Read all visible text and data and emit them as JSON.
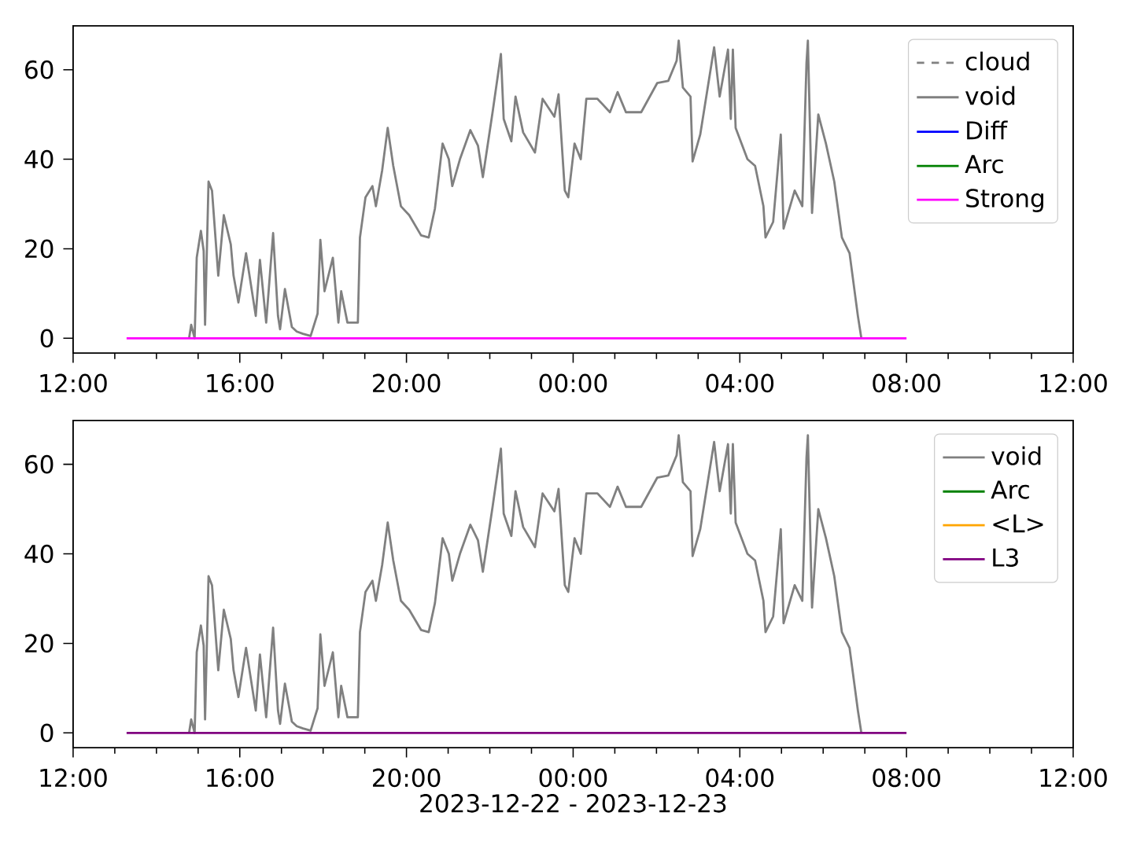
{
  "chart_data": [
    {
      "type": "line",
      "xlim": [
        "2023-12-22T12:00",
        "2023-12-23T12:00"
      ],
      "ylim": [
        -3.3,
        69.8
      ],
      "xticks": [
        {
          "value": "2023-12-22T12:00",
          "label": "12:00"
        },
        {
          "value": "2023-12-22T13:00",
          "label": null
        },
        {
          "value": "2023-12-22T14:00",
          "label": null
        },
        {
          "value": "2023-12-22T15:00",
          "label": null
        },
        {
          "value": "2023-12-22T16:00",
          "label": "16:00"
        },
        {
          "value": "2023-12-22T17:00",
          "label": null
        },
        {
          "value": "2023-12-22T18:00",
          "label": null
        },
        {
          "value": "2023-12-22T19:00",
          "label": null
        },
        {
          "value": "2023-12-22T20:00",
          "label": "20:00"
        },
        {
          "value": "2023-12-22T21:00",
          "label": null
        },
        {
          "value": "2023-12-22T22:00",
          "label": null
        },
        {
          "value": "2023-12-22T23:00",
          "label": null
        },
        {
          "value": "2023-12-23T00:00",
          "label": "00:00"
        },
        {
          "value": "2023-12-23T01:00",
          "label": null
        },
        {
          "value": "2023-12-23T02:00",
          "label": null
        },
        {
          "value": "2023-12-23T03:00",
          "label": null
        },
        {
          "value": "2023-12-23T04:00",
          "label": "04:00"
        },
        {
          "value": "2023-12-23T05:00",
          "label": null
        },
        {
          "value": "2023-12-23T06:00",
          "label": null
        },
        {
          "value": "2023-12-23T07:00",
          "label": null
        },
        {
          "value": "2023-12-23T08:00",
          "label": "08:00"
        },
        {
          "value": "2023-12-23T09:00",
          "label": null
        },
        {
          "value": "2023-12-23T10:00",
          "label": null
        },
        {
          "value": "2023-12-23T11:00",
          "label": null
        },
        {
          "value": "2023-12-23T12:00",
          "label": "12:00"
        }
      ],
      "yticks": [
        0,
        20,
        40,
        60
      ],
      "legend": "top right",
      "series": [
        {
          "name": "cloud",
          "color": "#808080",
          "line_style": "dashed",
          "values": [
            null
          ]
        },
        {
          "name": "void",
          "color": "#808080",
          "x": [
            "2023-12-22T14:47",
            "2023-12-22T14:50",
            "2023-12-22T14:55",
            "2023-12-22T14:58",
            "2023-12-22T15:04",
            "2023-12-22T15:08",
            "2023-12-22T15:10",
            "2023-12-22T15:15",
            "2023-12-22T15:20",
            "2023-12-22T15:29",
            "2023-12-22T15:37",
            "2023-12-22T15:47",
            "2023-12-22T15:51",
            "2023-12-22T15:58",
            "2023-12-22T16:09",
            "2023-12-22T16:19",
            "2023-12-22T16:23",
            "2023-12-22T16:29",
            "2023-12-22T16:38",
            "2023-12-22T16:48",
            "2023-12-22T16:55",
            "2023-12-22T16:58",
            "2023-12-22T17:05",
            "2023-12-22T17:15",
            "2023-12-22T17:22",
            "2023-12-22T17:31",
            "2023-12-22T17:42",
            "2023-12-22T17:52",
            "2023-12-22T17:56",
            "2023-12-22T18:02",
            "2023-12-22T18:14",
            "2023-12-22T18:22",
            "2023-12-22T18:26",
            "2023-12-22T18:35",
            "2023-12-22T18:50",
            "2023-12-22T18:53",
            "2023-12-22T19:01",
            "2023-12-22T19:11",
            "2023-12-22T19:16",
            "2023-12-22T19:25",
            "2023-12-22T19:33",
            "2023-12-22T19:41",
            "2023-12-22T19:52",
            "2023-12-22T20:04",
            "2023-12-22T20:21",
            "2023-12-22T20:32",
            "2023-12-22T20:41",
            "2023-12-22T20:52",
            "2023-12-22T21:01",
            "2023-12-22T21:06",
            "2023-12-22T21:17",
            "2023-12-22T21:32",
            "2023-12-22T21:43",
            "2023-12-22T21:50",
            "2023-12-22T22:04",
            "2023-12-22T22:16",
            "2023-12-22T22:20",
            "2023-12-22T22:31",
            "2023-12-22T22:37",
            "2023-12-22T22:48",
            "2023-12-22T23:05",
            "2023-12-22T23:16",
            "2023-12-22T23:33",
            "2023-12-22T23:39",
            "2023-12-22T23:48",
            "2023-12-22T23:53",
            "2023-12-23T00:02",
            "2023-12-23T00:11",
            "2023-12-23T00:19",
            "2023-12-23T00:35",
            "2023-12-23T00:53",
            "2023-12-23T01:04",
            "2023-12-23T01:16",
            "2023-12-23T01:38",
            "2023-12-23T02:01",
            "2023-12-23T02:17",
            "2023-12-23T02:29",
            "2023-12-23T02:32",
            "2023-12-23T02:38",
            "2023-12-23T02:49",
            "2023-12-23T02:52",
            "2023-12-23T03:03",
            "2023-12-23T03:23",
            "2023-12-23T03:31",
            "2023-12-23T03:43",
            "2023-12-23T03:47",
            "2023-12-23T03:50",
            "2023-12-23T03:54",
            "2023-12-23T04:11",
            "2023-12-23T04:22",
            "2023-12-23T04:34",
            "2023-12-23T04:37",
            "2023-12-23T04:48",
            "2023-12-23T04:59",
            "2023-12-23T05:03",
            "2023-12-23T05:19",
            "2023-12-23T05:30",
            "2023-12-23T05:36",
            "2023-12-23T05:38",
            "2023-12-23T05:44",
            "2023-12-23T05:53",
            "2023-12-23T06:04",
            "2023-12-23T06:16",
            "2023-12-23T06:27",
            "2023-12-23T06:38",
            "2023-12-23T06:50",
            "2023-12-23T06:55"
          ],
          "values": [
            0,
            3,
            0,
            18,
            24,
            19.5,
            3,
            35,
            33,
            14,
            27.5,
            21,
            14,
            8,
            19,
            9,
            5,
            17.5,
            3.5,
            23.5,
            5,
            2,
            11,
            2.5,
            1.5,
            1,
            0.5,
            5.5,
            22,
            10.5,
            18,
            3.5,
            10.5,
            3.5,
            3.5,
            22.5,
            31.5,
            34,
            29.5,
            37.5,
            47,
            38.5,
            29.5,
            27.5,
            23,
            22.5,
            29,
            43.5,
            40,
            34,
            40,
            46.5,
            43,
            36,
            50.5,
            63.5,
            49,
            44,
            54,
            46,
            41.5,
            53.5,
            49.5,
            54.5,
            33,
            31.5,
            43.5,
            40,
            53.5,
            53.5,
            50.5,
            55,
            50.5,
            50.5,
            57,
            57.5,
            62,
            66.5,
            56,
            54,
            39.5,
            45.5,
            65,
            54,
            64.5,
            49,
            64.5,
            47,
            40,
            38.5,
            29.5,
            22.5,
            26,
            45.5,
            24.5,
            33,
            29.5,
            61.5,
            66.5,
            28,
            50,
            43.5,
            35,
            22.5,
            19,
            5,
            0
          ]
        },
        {
          "name": "Diff",
          "color": "#0000ff",
          "values": [
            null
          ]
        },
        {
          "name": "Arc",
          "color": "#008000",
          "values": [
            null
          ]
        },
        {
          "name": "Strong",
          "color": "#ff00ff",
          "x": [
            "2023-12-22T13:17",
            "2023-12-23T08:00"
          ],
          "values": [
            0,
            0
          ]
        }
      ]
    },
    {
      "type": "line",
      "xlim": [
        "2023-12-22T12:00",
        "2023-12-23T12:00"
      ],
      "ylim": [
        -3.3,
        69.8
      ],
      "xlabel": "2023-12-22 - 2023-12-23",
      "xticks": [
        {
          "value": "2023-12-22T12:00",
          "label": "12:00"
        },
        {
          "value": "2023-12-22T13:00",
          "label": null
        },
        {
          "value": "2023-12-22T14:00",
          "label": null
        },
        {
          "value": "2023-12-22T15:00",
          "label": null
        },
        {
          "value": "2023-12-22T16:00",
          "label": "16:00"
        },
        {
          "value": "2023-12-22T17:00",
          "label": null
        },
        {
          "value": "2023-12-22T18:00",
          "label": null
        },
        {
          "value": "2023-12-22T19:00",
          "label": null
        },
        {
          "value": "2023-12-22T20:00",
          "label": "20:00"
        },
        {
          "value": "2023-12-22T21:00",
          "label": null
        },
        {
          "value": "2023-12-22T22:00",
          "label": null
        },
        {
          "value": "2023-12-22T23:00",
          "label": null
        },
        {
          "value": "2023-12-23T00:00",
          "label": "00:00"
        },
        {
          "value": "2023-12-23T01:00",
          "label": null
        },
        {
          "value": "2023-12-23T02:00",
          "label": null
        },
        {
          "value": "2023-12-23T03:00",
          "label": null
        },
        {
          "value": "2023-12-23T04:00",
          "label": "04:00"
        },
        {
          "value": "2023-12-23T05:00",
          "label": null
        },
        {
          "value": "2023-12-23T06:00",
          "label": null
        },
        {
          "value": "2023-12-23T07:00",
          "label": null
        },
        {
          "value": "2023-12-23T08:00",
          "label": "08:00"
        },
        {
          "value": "2023-12-23T09:00",
          "label": null
        },
        {
          "value": "2023-12-23T10:00",
          "label": null
        },
        {
          "value": "2023-12-23T11:00",
          "label": null
        },
        {
          "value": "2023-12-23T12:00",
          "label": "12:00"
        }
      ],
      "yticks": [
        0,
        20,
        40,
        60
      ],
      "legend": "top right",
      "series": [
        {
          "name": "void",
          "color": "#808080",
          "x": [
            "2023-12-22T14:47",
            "2023-12-22T14:50",
            "2023-12-22T14:55",
            "2023-12-22T14:58",
            "2023-12-22T15:04",
            "2023-12-22T15:08",
            "2023-12-22T15:10",
            "2023-12-22T15:15",
            "2023-12-22T15:20",
            "2023-12-22T15:29",
            "2023-12-22T15:37",
            "2023-12-22T15:47",
            "2023-12-22T15:51",
            "2023-12-22T15:58",
            "2023-12-22T16:09",
            "2023-12-22T16:19",
            "2023-12-22T16:23",
            "2023-12-22T16:29",
            "2023-12-22T16:38",
            "2023-12-22T16:48",
            "2023-12-22T16:55",
            "2023-12-22T16:58",
            "2023-12-22T17:05",
            "2023-12-22T17:15",
            "2023-12-22T17:22",
            "2023-12-22T17:31",
            "2023-12-22T17:42",
            "2023-12-22T17:52",
            "2023-12-22T17:56",
            "2023-12-22T18:02",
            "2023-12-22T18:14",
            "2023-12-22T18:22",
            "2023-12-22T18:26",
            "2023-12-22T18:35",
            "2023-12-22T18:50",
            "2023-12-22T18:53",
            "2023-12-22T19:01",
            "2023-12-22T19:11",
            "2023-12-22T19:16",
            "2023-12-22T19:25",
            "2023-12-22T19:33",
            "2023-12-22T19:41",
            "2023-12-22T19:52",
            "2023-12-22T20:04",
            "2023-12-22T20:21",
            "2023-12-22T20:32",
            "2023-12-22T20:41",
            "2023-12-22T20:52",
            "2023-12-22T21:01",
            "2023-12-22T21:06",
            "2023-12-22T21:17",
            "2023-12-22T21:32",
            "2023-12-22T21:43",
            "2023-12-22T21:50",
            "2023-12-22T22:04",
            "2023-12-22T22:16",
            "2023-12-22T22:20",
            "2023-12-22T22:31",
            "2023-12-22T22:37",
            "2023-12-22T22:48",
            "2023-12-22T23:05",
            "2023-12-22T23:16",
            "2023-12-22T23:33",
            "2023-12-22T23:39",
            "2023-12-22T23:48",
            "2023-12-22T23:53",
            "2023-12-23T00:02",
            "2023-12-23T00:11",
            "2023-12-23T00:19",
            "2023-12-23T00:35",
            "2023-12-23T00:53",
            "2023-12-23T01:04",
            "2023-12-23T01:16",
            "2023-12-23T01:38",
            "2023-12-23T02:01",
            "2023-12-23T02:17",
            "2023-12-23T02:29",
            "2023-12-23T02:32",
            "2023-12-23T02:38",
            "2023-12-23T02:49",
            "2023-12-23T02:52",
            "2023-12-23T03:03",
            "2023-12-23T03:23",
            "2023-12-23T03:31",
            "2023-12-23T03:43",
            "2023-12-23T03:47",
            "2023-12-23T03:50",
            "2023-12-23T03:54",
            "2023-12-23T04:11",
            "2023-12-23T04:22",
            "2023-12-23T04:34",
            "2023-12-23T04:37",
            "2023-12-23T04:48",
            "2023-12-23T04:59",
            "2023-12-23T05:03",
            "2023-12-23T05:19",
            "2023-12-23T05:30",
            "2023-12-23T05:36",
            "2023-12-23T05:38",
            "2023-12-23T05:44",
            "2023-12-23T05:53",
            "2023-12-23T06:04",
            "2023-12-23T06:16",
            "2023-12-23T06:27",
            "2023-12-23T06:38",
            "2023-12-23T06:50",
            "2023-12-23T06:55"
          ],
          "values": [
            0,
            3,
            0,
            18,
            24,
            19.5,
            3,
            35,
            33,
            14,
            27.5,
            21,
            14,
            8,
            19,
            9,
            5,
            17.5,
            3.5,
            23.5,
            5,
            2,
            11,
            2.5,
            1.5,
            1,
            0.5,
            5.5,
            22,
            10.5,
            18,
            3.5,
            10.5,
            3.5,
            3.5,
            22.5,
            31.5,
            34,
            29.5,
            37.5,
            47,
            38.5,
            29.5,
            27.5,
            23,
            22.5,
            29,
            43.5,
            40,
            34,
            40,
            46.5,
            43,
            36,
            50.5,
            63.5,
            49,
            44,
            54,
            46,
            41.5,
            53.5,
            49.5,
            54.5,
            33,
            31.5,
            43.5,
            40,
            53.5,
            53.5,
            50.5,
            55,
            50.5,
            50.5,
            57,
            57.5,
            62,
            66.5,
            56,
            54,
            39.5,
            45.5,
            65,
            54,
            64.5,
            49,
            64.5,
            47,
            40,
            38.5,
            29.5,
            22.5,
            26,
            45.5,
            24.5,
            33,
            29.5,
            61.5,
            66.5,
            28,
            50,
            43.5,
            35,
            22.5,
            19,
            5,
            0
          ]
        },
        {
          "name": "Arc",
          "color": "#008000",
          "values": [
            null
          ]
        },
        {
          "name": "<L>",
          "color": "#ffa500",
          "values": [
            null
          ]
        },
        {
          "name": "L3",
          "color": "#800080",
          "x": [
            "2023-12-22T13:17",
            "2023-12-23T08:00"
          ],
          "values": [
            0,
            0
          ]
        }
      ]
    }
  ]
}
